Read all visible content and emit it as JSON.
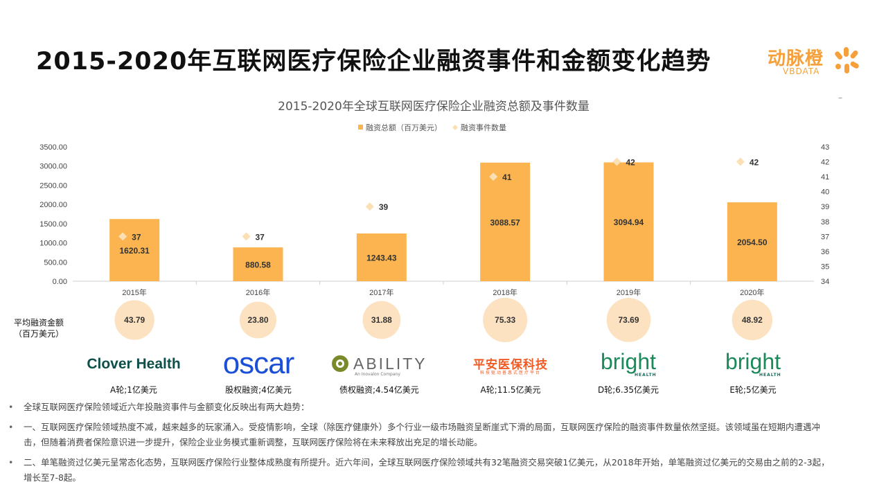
{
  "header": {
    "title": "2015-2020年互联网医疗保险企业融资事件和金额变化趋势",
    "brand_name": "动脉橙",
    "brand_en": "VBDATA",
    "brand_color": "#f5a03a"
  },
  "chart_data": {
    "type": "bar",
    "title": "2015-2020年全球互联网医疗保险企业融资总额及事件数量",
    "categories": [
      "2015年",
      "2016年",
      "2017年",
      "2018年",
      "2019年",
      "2020年"
    ],
    "series": [
      {
        "name": "融资总额（百万美元）",
        "type": "bar",
        "axis": "left",
        "color": "#fbb450",
        "values": [
          1620.31,
          880.58,
          1243.43,
          3088.57,
          3094.94,
          2054.5
        ],
        "labels": [
          "1620.31",
          "880.58",
          "1243.43",
          "3088.57",
          "3094.94",
          "2054.50"
        ]
      },
      {
        "name": "融资事件数量",
        "type": "scatter",
        "axis": "right",
        "color": "#fbe0b5",
        "values": [
          37,
          37,
          39,
          41,
          42,
          42
        ]
      }
    ],
    "ylim_left": [
      0,
      3500
    ],
    "yticks_left": [
      "0.00",
      "500.00",
      "1000.00",
      "1500.00",
      "2000.00",
      "2500.00",
      "3000.00",
      "3500.00"
    ],
    "ylim_right": [
      34,
      43
    ],
    "yticks_right": [
      "34",
      "35",
      "36",
      "37",
      "38",
      "39",
      "40",
      "41",
      "42",
      "43"
    ],
    "legend": "top",
    "grid": false
  },
  "avg_row": {
    "title_line1": "平均融资金额",
    "title_line2": "（百万美元）",
    "values": [
      43.79,
      23.8,
      31.88,
      75.33,
      73.69,
      48.92
    ],
    "labels": [
      "43.79",
      "23.80",
      "31.88",
      "75.33",
      "73.69",
      "48.92"
    ],
    "color": "#fce2c0"
  },
  "companies": [
    {
      "name": "Clover Health",
      "caption": "A轮;1亿美元"
    },
    {
      "name": "oscar",
      "caption": "股权融资;4亿美元"
    },
    {
      "name": "ABILITY",
      "sub": "An Inovalon Company",
      "caption": "债权融资;4.54亿美元"
    },
    {
      "name": "平安医保科技",
      "sub": "科技驱动普惠式医疗平台",
      "caption": "A轮;11.5亿美元"
    },
    {
      "name": "bright",
      "sub": "HEALTH",
      "caption": "D轮;6.35亿美元"
    },
    {
      "name": "bright",
      "sub": "HEALTH",
      "caption": "E轮;5亿美元"
    }
  ],
  "bullets": [
    "全球互联网医疗保险领域近六年投融资事件与金额变化反映出有两大趋势：",
    "一、互联网医疗保险领域热度不减，越来越多的玩家涌入。受疫情影响，全球（除医疗健康外）多个行业一级市场融资呈断崖式下滑的局面，互联网医疗保险的融资事件数量依然坚挺。该领域虽在短期内遭遇冲击，但随着消费者保险意识进一步提升，保险企业业务模式重新调整，互联网医疗保险将在未来释放出充足的增长动能。",
    "二、单笔融资过亿美元呈常态化态势，互联网医疗保险行业整体成熟度有所提升。近六年间，全球互联网医疗保险领域共有32笔融资交易突破1亿美元，从2018年开始，单笔融资过亿美元的交易由之前的2-3起，增长至7-8起。"
  ]
}
